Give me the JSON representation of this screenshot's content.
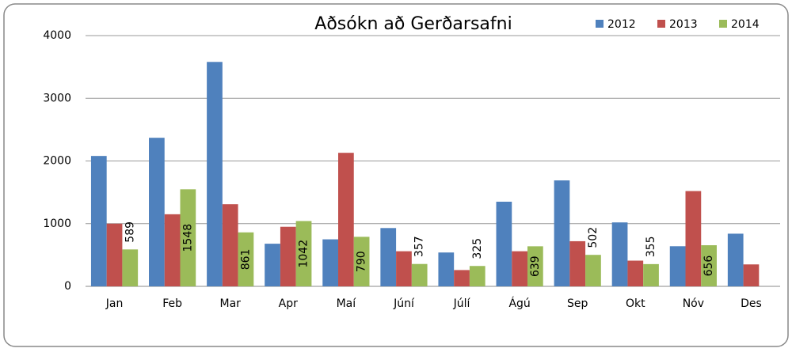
{
  "chart_data": {
    "type": "bar",
    "title": "Aðsókn að Gerðarsafni",
    "categories": [
      "Jan",
      "Feb",
      "Mar",
      "Apr",
      "Maí",
      "Júní",
      "Júlí",
      "Ágú",
      "Sep",
      "Okt",
      "Nóv",
      "Des"
    ],
    "series": [
      {
        "name": "2012",
        "color": "#4f81bd",
        "values": [
          2080,
          2370,
          3580,
          680,
          750,
          930,
          540,
          1350,
          1690,
          1020,
          640,
          840
        ]
      },
      {
        "name": "2013",
        "color": "#c0504d",
        "values": [
          1000,
          1150,
          1310,
          950,
          2130,
          560,
          260,
          560,
          720,
          410,
          1520,
          350
        ]
      },
      {
        "name": "2014",
        "color": "#9bbb59",
        "values": [
          589,
          1548,
          861,
          1042,
          790,
          357,
          325,
          639,
          502,
          355,
          656,
          null
        ],
        "show_labels": true
      }
    ],
    "ylim": [
      0,
      4000
    ],
    "yticks": [
      0,
      1000,
      2000,
      3000,
      4000
    ],
    "grid": true,
    "legend": "top-right"
  }
}
